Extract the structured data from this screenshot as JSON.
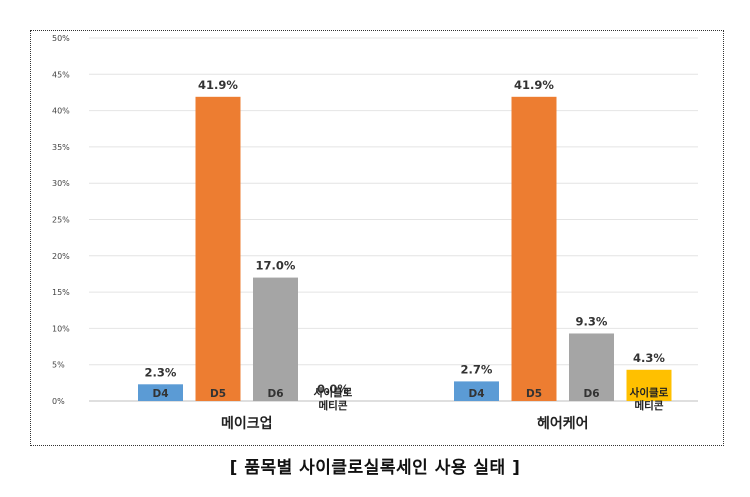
{
  "chart_data": {
    "type": "bar",
    "ylim": [
      0,
      50
    ],
    "yticks": [
      0,
      5,
      10,
      15,
      20,
      25,
      30,
      35,
      40,
      45,
      50
    ],
    "ytick_suffix": "%",
    "grid": true,
    "groups": [
      {
        "name": "메이크업",
        "bars": [
          {
            "label": "D4",
            "value": 2.3,
            "value_label": "2.3%",
            "color": "#5b9bd5"
          },
          {
            "label": "D5",
            "value": 41.9,
            "value_label": "41.9%",
            "color": "#ed7d31"
          },
          {
            "label": "D6",
            "value": 17.0,
            "value_label": "17.0%",
            "color": "#a5a5a5"
          },
          {
            "label": "사이클로 메티콘",
            "value": 0.0,
            "value_label": "0.0%",
            "color": "#ffc000"
          }
        ]
      },
      {
        "name": "헤어케어",
        "bars": [
          {
            "label": "D4",
            "value": 2.7,
            "value_label": "2.7%",
            "color": "#5b9bd5"
          },
          {
            "label": "D5",
            "value": 41.9,
            "value_label": "41.9%",
            "color": "#ed7d31"
          },
          {
            "label": "D6",
            "value": 9.3,
            "value_label": "9.3%",
            "color": "#a5a5a5"
          },
          {
            "label": "사이클로 메티콘",
            "value": 4.3,
            "value_label": "4.3%",
            "color": "#ffc000"
          }
        ]
      }
    ]
  },
  "caption": "[ 품목별 사이클로실록세인 사용 실태 ]"
}
